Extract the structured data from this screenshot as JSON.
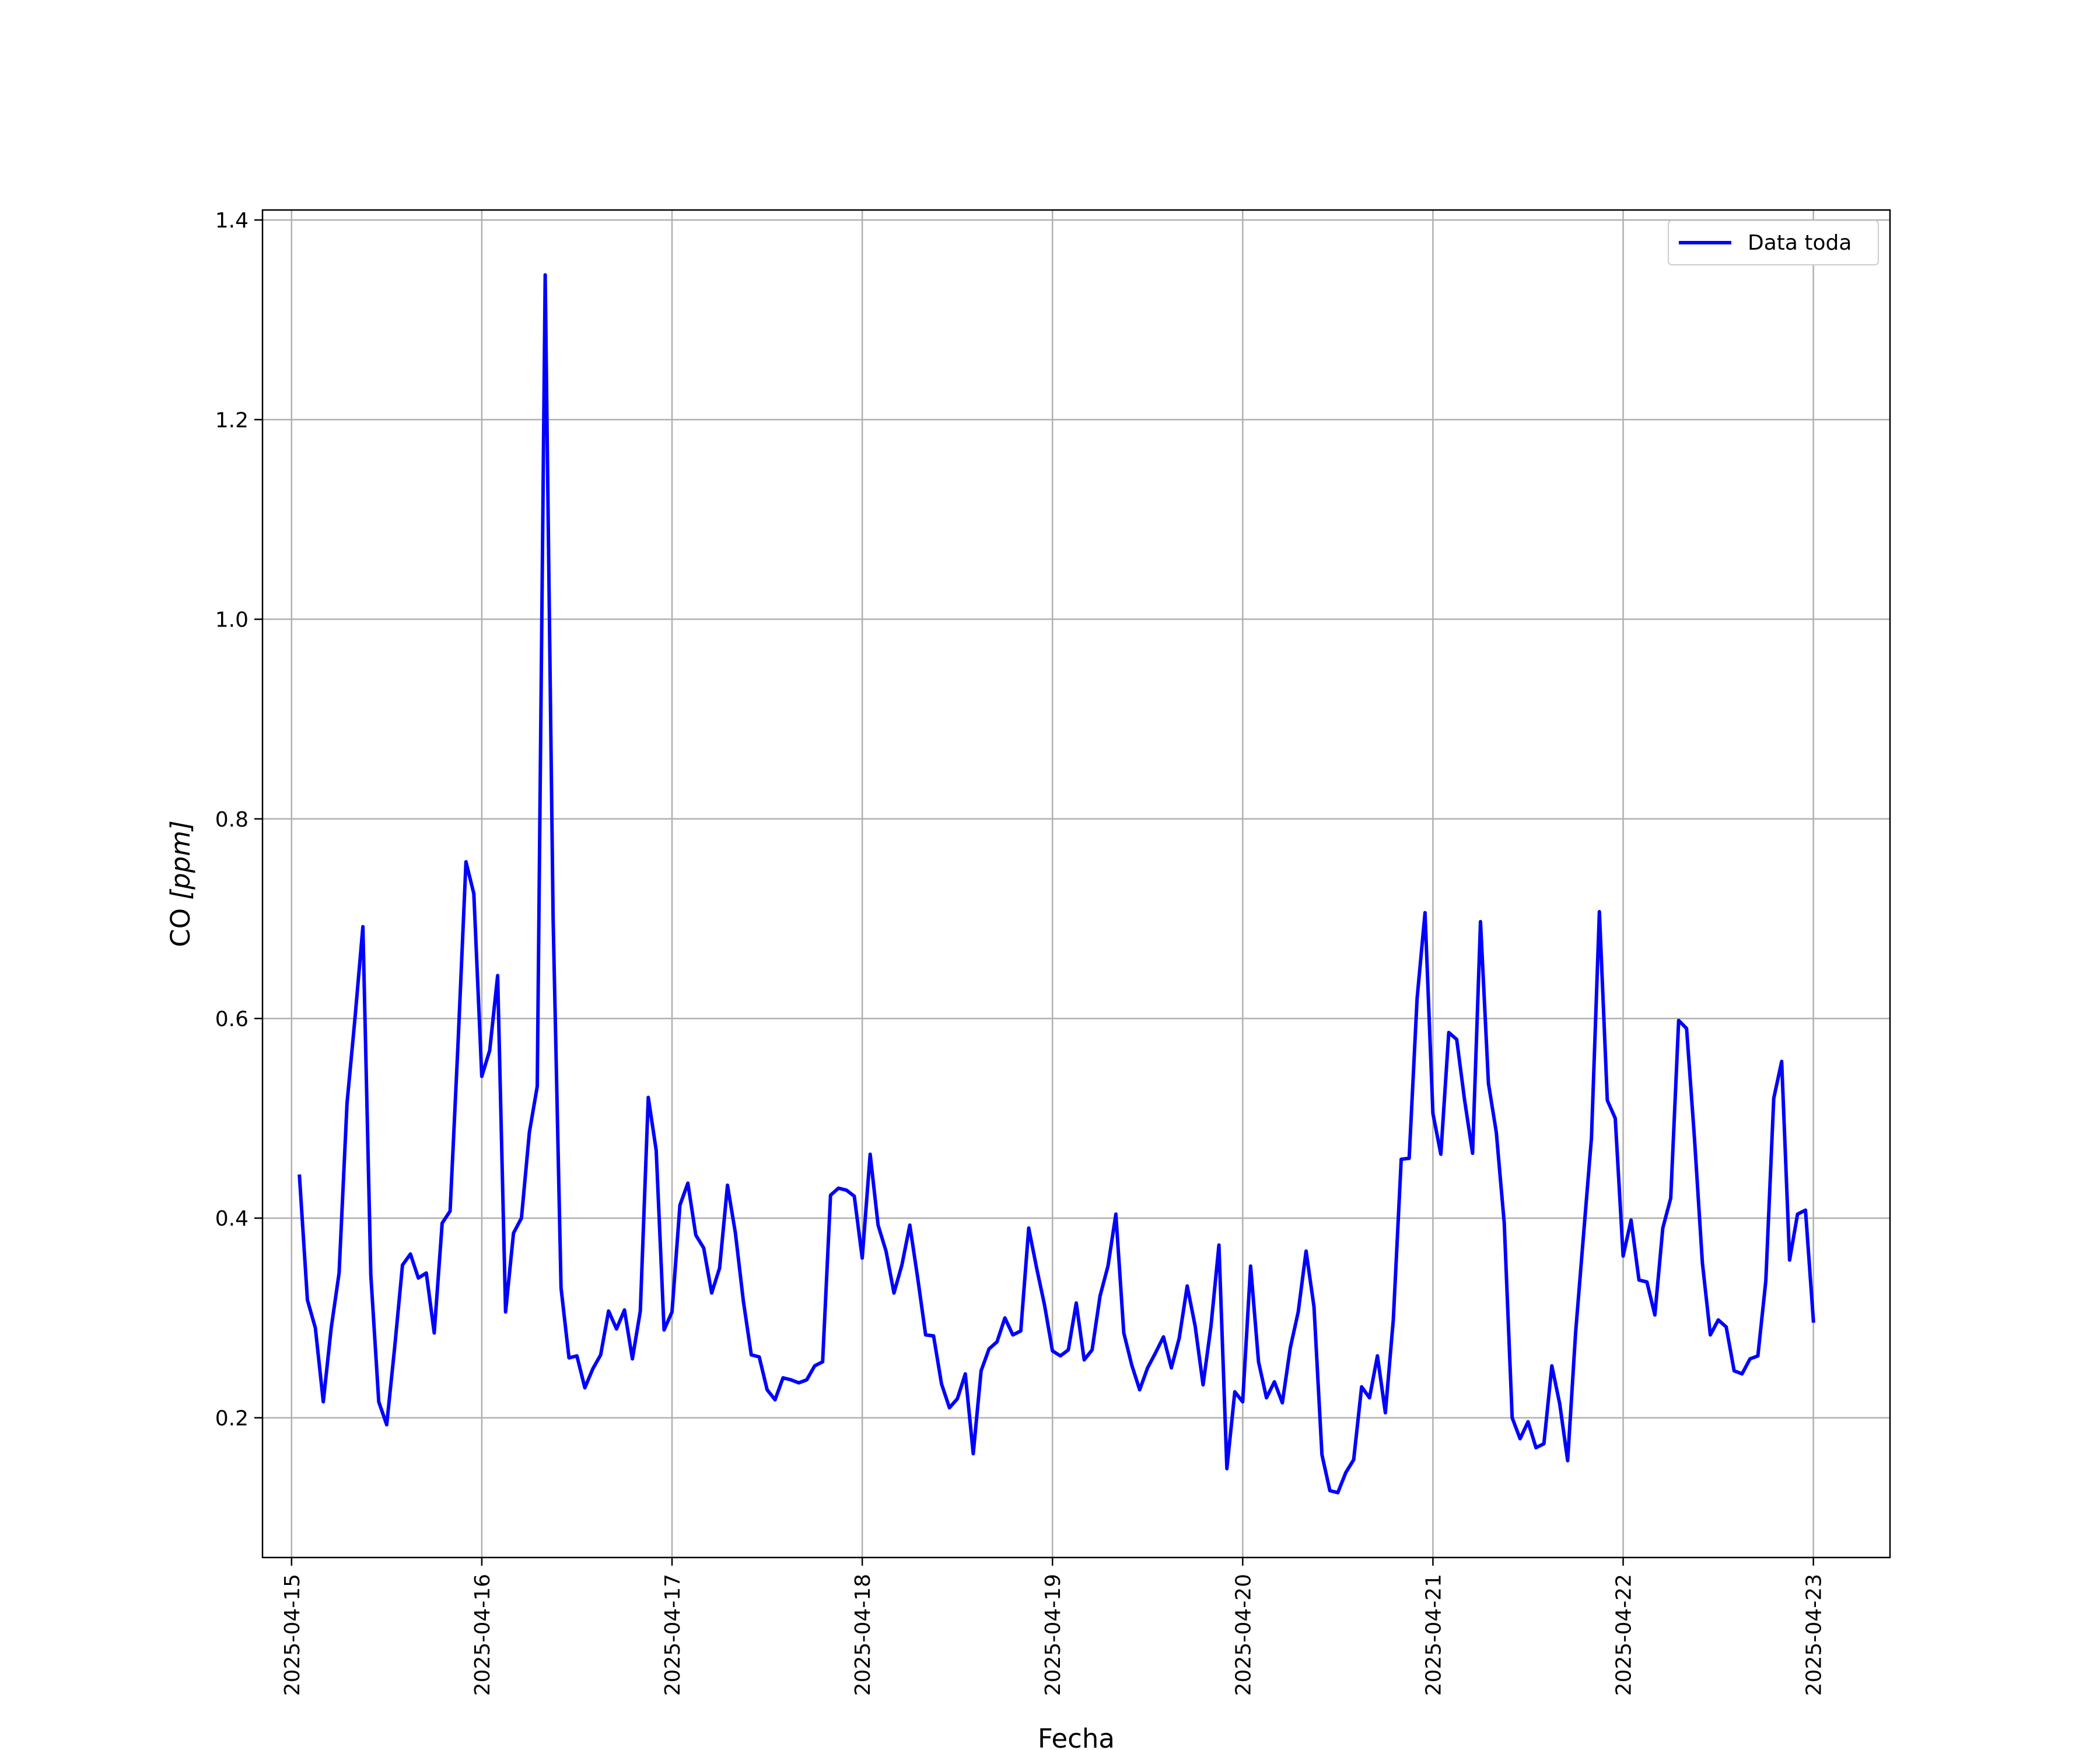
{
  "chart_data": {
    "type": "line",
    "title": "",
    "xlabel": "Fecha",
    "ylabel_main": "CO ",
    "ylabel_unit": "[ppm]",
    "grid": true,
    "legend_position": "top-right",
    "xlim": [
      "2025-04-14T20:20",
      "2025-04-23T09:40"
    ],
    "ylim": [
      0.06,
      1.41
    ],
    "x_ticks": [
      "2025-04-15",
      "2025-04-16",
      "2025-04-17",
      "2025-04-18",
      "2025-04-19",
      "2025-04-20",
      "2025-04-21",
      "2025-04-22",
      "2025-04-23"
    ],
    "y_ticks": [
      0.2,
      0.4,
      0.6,
      0.8,
      1.0,
      1.2,
      1.4
    ],
    "y_tick_labels": [
      "0.2",
      "0.4",
      "0.6",
      "0.8",
      "1.0",
      "1.2",
      "1.4"
    ],
    "series": [
      {
        "name": "Data toda",
        "color": "#0000ff",
        "start": "2025-04-15T01:00",
        "interval_hours": 1,
        "values": [
          0.442,
          0.318,
          0.29,
          0.216,
          0.29,
          0.345,
          0.515,
          0.6,
          0.692,
          0.343,
          0.216,
          0.193,
          0.27,
          0.353,
          0.364,
          0.34,
          0.345,
          0.285,
          0.395,
          0.407,
          0.575,
          0.757,
          0.725,
          0.542,
          0.568,
          0.643,
          0.306,
          0.385,
          0.4,
          0.486,
          0.532,
          1.345,
          0.7,
          0.33,
          0.26,
          0.262,
          0.23,
          0.249,
          0.263,
          0.307,
          0.289,
          0.308,
          0.259,
          0.307,
          0.521,
          0.468,
          0.288,
          0.306,
          0.413,
          0.435,
          0.383,
          0.37,
          0.325,
          0.35,
          0.433,
          0.385,
          0.317,
          0.263,
          0.261,
          0.228,
          0.218,
          0.24,
          0.238,
          0.235,
          0.238,
          0.252,
          0.256,
          0.423,
          0.43,
          0.428,
          0.422,
          0.36,
          0.464,
          0.393,
          0.367,
          0.325,
          0.353,
          0.393,
          0.34,
          0.283,
          0.282,
          0.234,
          0.21,
          0.219,
          0.244,
          0.164,
          0.247,
          0.269,
          0.276,
          0.3,
          0.283,
          0.287,
          0.39,
          0.35,
          0.313,
          0.267,
          0.262,
          0.268,
          0.315,
          0.258,
          0.268,
          0.322,
          0.352,
          0.404,
          0.285,
          0.253,
          0.228,
          0.25,
          0.265,
          0.281,
          0.25,
          0.28,
          0.332,
          0.292,
          0.233,
          0.292,
          0.373,
          0.149,
          0.226,
          0.216,
          0.352,
          0.256,
          0.22,
          0.236,
          0.215,
          0.27,
          0.306,
          0.367,
          0.311,
          0.163,
          0.127,
          0.125,
          0.145,
          0.158,
          0.231,
          0.22,
          0.262,
          0.205,
          0.298,
          0.459,
          0.46,
          0.62,
          0.706,
          0.505,
          0.464,
          0.586,
          0.579,
          0.518,
          0.465,
          0.697,
          0.535,
          0.486,
          0.395,
          0.2,
          0.179,
          0.196,
          0.17,
          0.174,
          0.252,
          0.214,
          0.157,
          0.285,
          0.383,
          0.48,
          0.707,
          0.518,
          0.5,
          0.362,
          0.398,
          0.338,
          0.336,
          0.303,
          0.39,
          0.42,
          0.598,
          0.59,
          0.48,
          0.355,
          0.283,
          0.298,
          0.291,
          0.247,
          0.244,
          0.259,
          0.262,
          0.337,
          0.52,
          0.557,
          0.358,
          0.404,
          0.408,
          0.297
        ]
      }
    ]
  }
}
